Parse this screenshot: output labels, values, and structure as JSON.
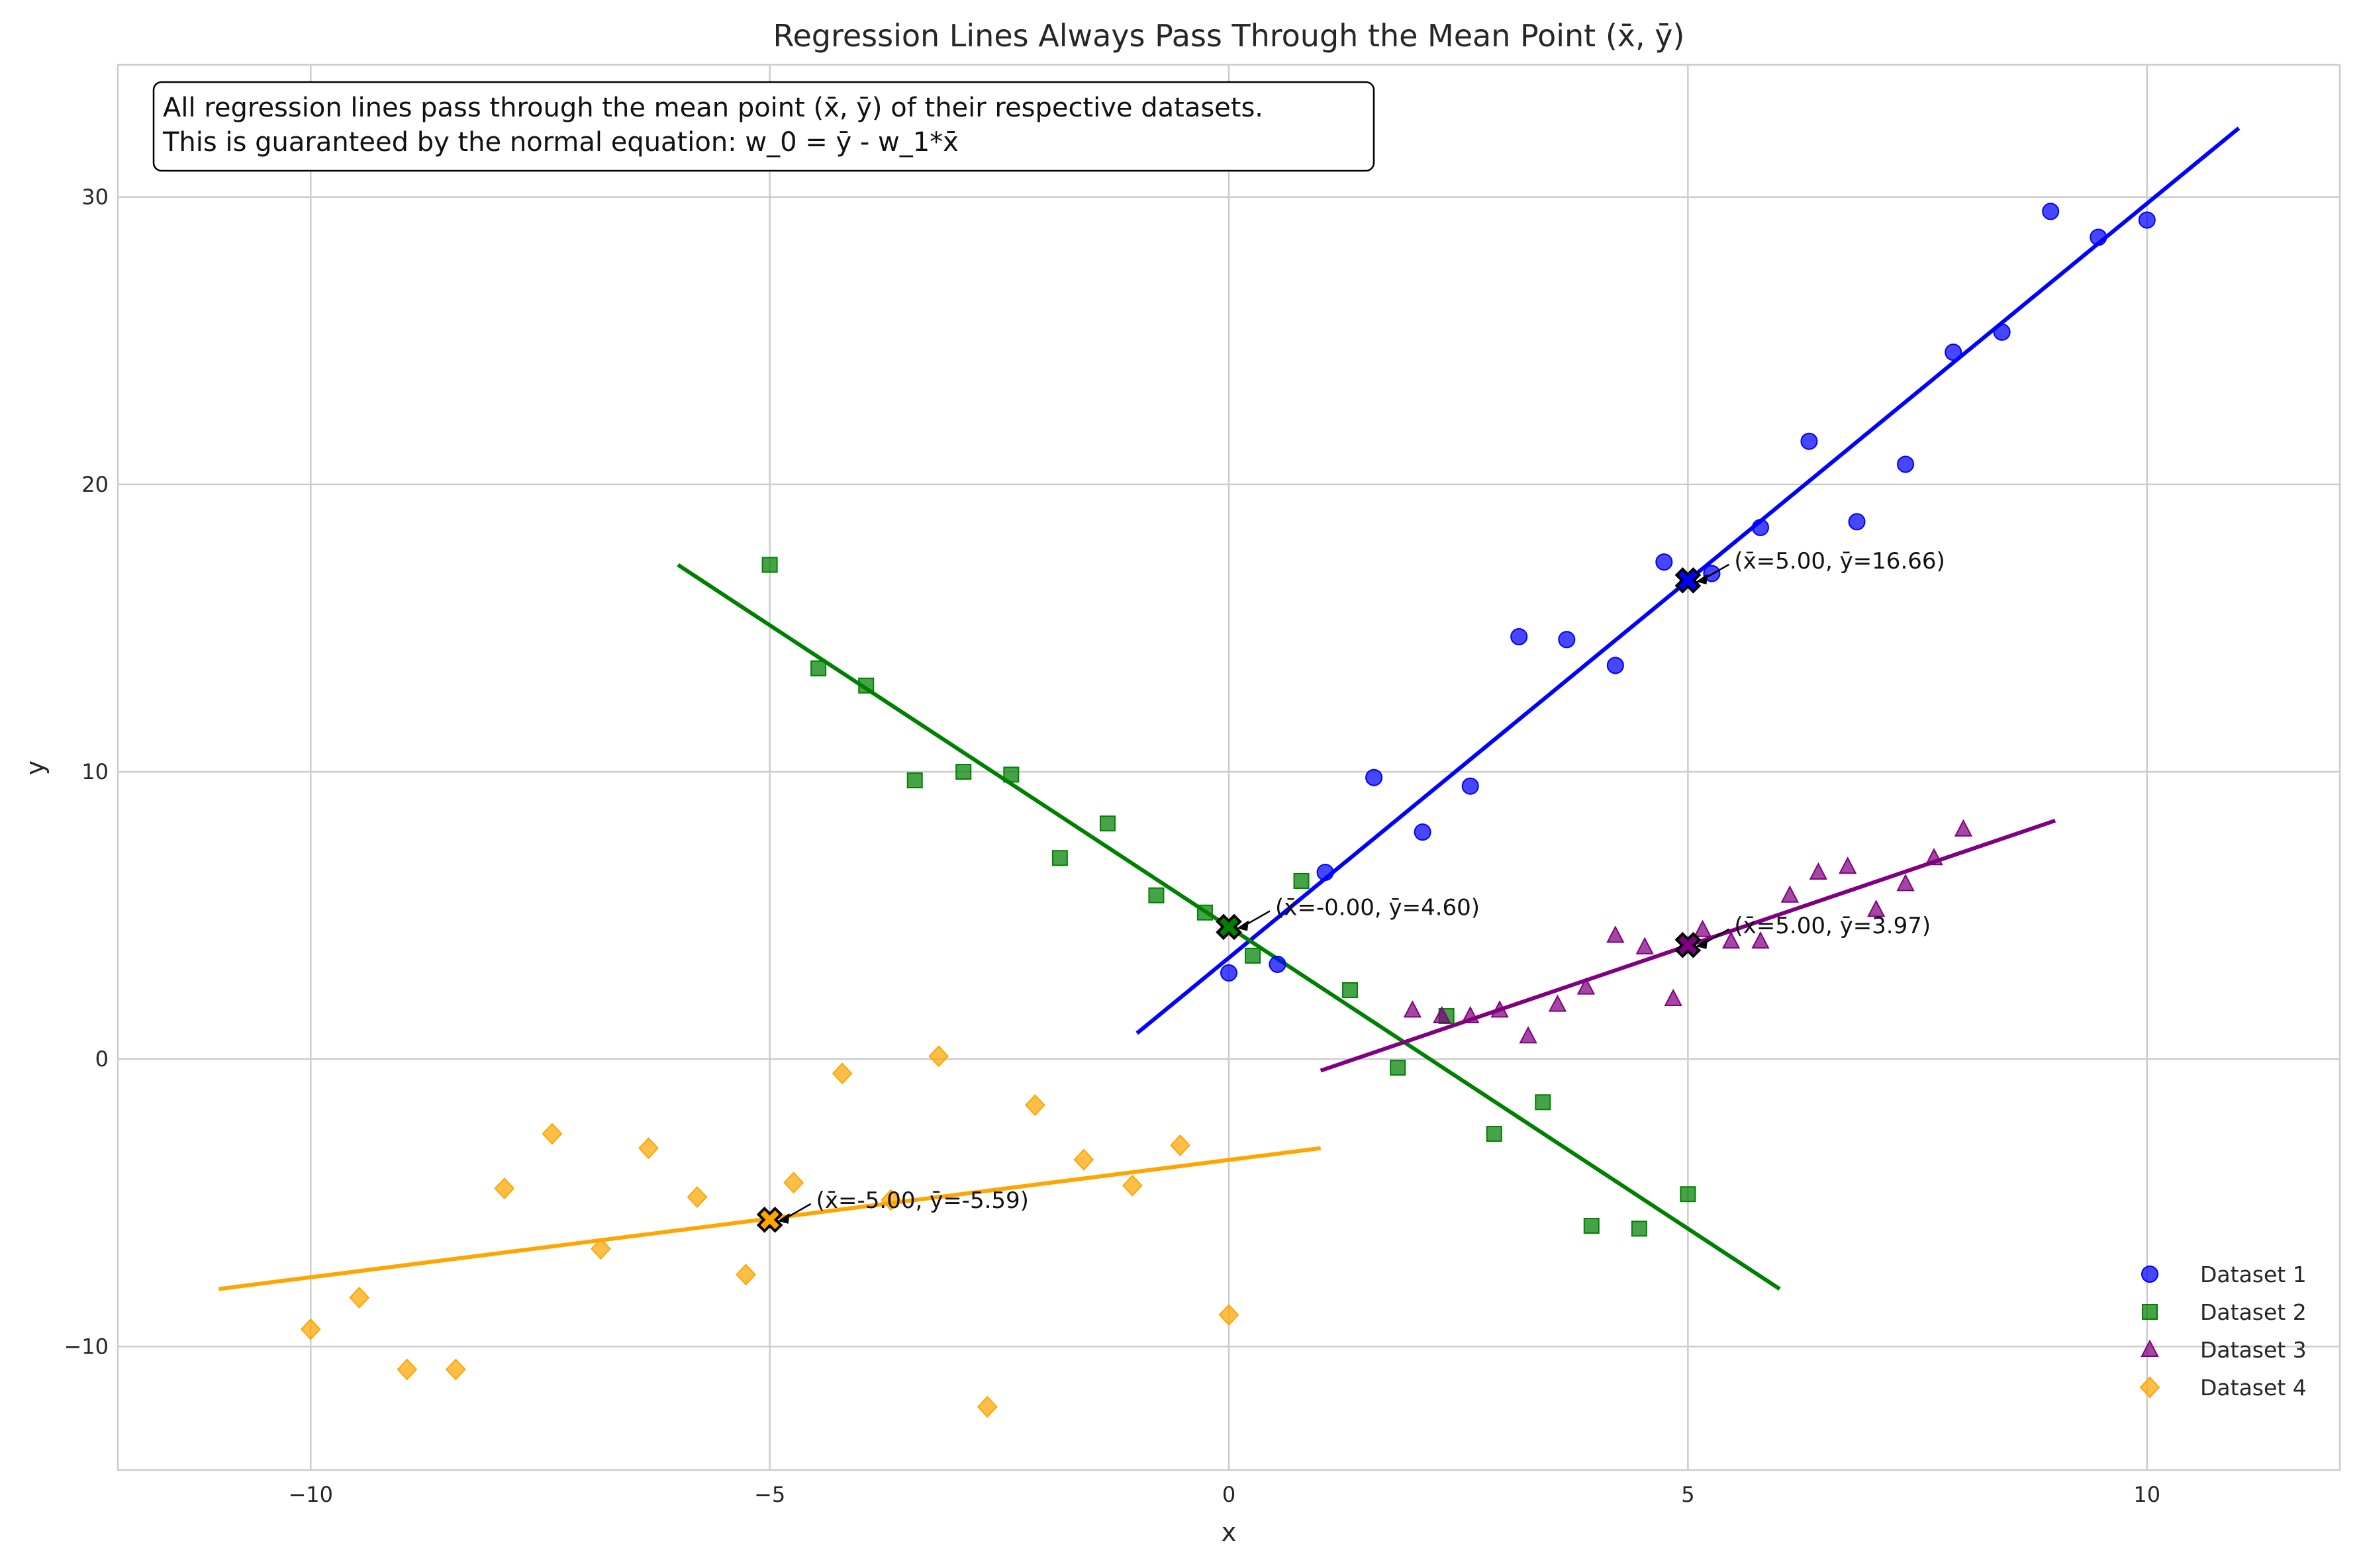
{
  "chart_data": {
    "type": "scatter",
    "title": "Regression Lines Always Pass Through the Mean Point (x̄, ȳ)",
    "xlabel": "x",
    "ylabel": "y",
    "xlim": [
      -12.1,
      12.1
    ],
    "ylim": [
      -14.3,
      34.6
    ],
    "xticks": [
      -10,
      -5,
      0,
      5,
      10
    ],
    "xtick_labels": [
      "−10",
      "−5",
      "0",
      "5",
      "10"
    ],
    "yticks": [
      -10,
      0,
      10,
      20,
      30
    ],
    "ytick_labels": [
      "−10",
      "0",
      "10",
      "20",
      "30"
    ],
    "grid": true,
    "legend_position": "bottom-right",
    "annotation_box": {
      "lines": [
        "All regression lines pass through the mean point (x̄, ȳ) of their respective datasets.",
        "This is guaranteed by the normal equation: w_0 = ȳ - w_1*x̄"
      ]
    },
    "series": [
      {
        "name": "Dataset 1",
        "color": "#0000ff",
        "marker": "circle",
        "points": [
          [
            0.0,
            3.0
          ],
          [
            0.53,
            3.3
          ],
          [
            1.05,
            6.5
          ],
          [
            1.58,
            9.8
          ],
          [
            2.11,
            7.9
          ],
          [
            2.63,
            9.5
          ],
          [
            3.16,
            14.7
          ],
          [
            3.68,
            14.6
          ],
          [
            4.21,
            13.7
          ],
          [
            4.74,
            17.3
          ],
          [
            5.26,
            16.9
          ],
          [
            5.79,
            18.5
          ],
          [
            6.32,
            21.5
          ],
          [
            6.84,
            18.7
          ],
          [
            7.37,
            20.7
          ],
          [
            7.89,
            24.6
          ],
          [
            8.42,
            25.3
          ],
          [
            8.95,
            29.5
          ],
          [
            9.47,
            28.6
          ],
          [
            10.0,
            29.2
          ]
        ],
        "regression_line": {
          "x": [
            -1,
            11
          ],
          "y": [
            0.9,
            32.4
          ]
        },
        "mean": {
          "x": 5.0,
          "y": 16.66
        },
        "mean_label": "(x̄=5.00, ȳ=16.66)"
      },
      {
        "name": "Dataset 2",
        "color": "#008000",
        "marker": "square",
        "points": [
          [
            -5.0,
            17.2
          ],
          [
            -4.47,
            13.6
          ],
          [
            -3.95,
            13.0
          ],
          [
            -3.42,
            9.7
          ],
          [
            -2.89,
            10.0
          ],
          [
            -2.37,
            9.9
          ],
          [
            -1.84,
            7.0
          ],
          [
            -1.32,
            8.2
          ],
          [
            -0.79,
            5.7
          ],
          [
            -0.26,
            5.1
          ],
          [
            0.26,
            3.6
          ],
          [
            0.79,
            6.2
          ],
          [
            1.32,
            2.4
          ],
          [
            1.84,
            -0.3
          ],
          [
            2.37,
            1.5
          ],
          [
            2.89,
            -2.6
          ],
          [
            3.42,
            -1.5
          ],
          [
            3.95,
            -5.8
          ],
          [
            4.47,
            -5.9
          ],
          [
            5.0,
            -4.7
          ]
        ],
        "regression_line": {
          "x": [
            -6,
            6
          ],
          "y": [
            17.2,
            -8.0
          ]
        },
        "mean": {
          "x": 0.0,
          "y": 4.6
        },
        "mean_label": "(x̄=-0.00, ȳ=4.60)"
      },
      {
        "name": "Dataset 3",
        "color": "#800080",
        "marker": "triangle",
        "points": [
          [
            2.0,
            1.7
          ],
          [
            2.32,
            1.5
          ],
          [
            2.63,
            1.5
          ],
          [
            2.95,
            1.7
          ],
          [
            3.26,
            0.8
          ],
          [
            3.58,
            1.9
          ],
          [
            3.89,
            2.5
          ],
          [
            4.21,
            4.3
          ],
          [
            4.53,
            3.9
          ],
          [
            4.84,
            2.1
          ],
          [
            5.16,
            4.5
          ],
          [
            5.47,
            4.1
          ],
          [
            5.79,
            4.1
          ],
          [
            6.11,
            5.7
          ],
          [
            6.42,
            6.5
          ],
          [
            6.74,
            6.7
          ],
          [
            7.05,
            5.2
          ],
          [
            7.37,
            6.1
          ],
          [
            7.68,
            7.0
          ],
          [
            8.0,
            8.0
          ]
        ],
        "regression_line": {
          "x": [
            1,
            9
          ],
          "y": [
            -0.4,
            8.3
          ]
        },
        "mean": {
          "x": 5.0,
          "y": 3.97
        },
        "mean_label": "(x̄=5.00, ȳ=3.97)"
      },
      {
        "name": "Dataset 4",
        "color": "#ffa500",
        "marker": "diamond",
        "points": [
          [
            -10.0,
            -9.4
          ],
          [
            -9.47,
            -8.3
          ],
          [
            -8.95,
            -10.8
          ],
          [
            -8.42,
            -10.8
          ],
          [
            -7.89,
            -4.5
          ],
          [
            -7.37,
            -2.6
          ],
          [
            -6.84,
            -6.6
          ],
          [
            -6.32,
            -3.1
          ],
          [
            -5.79,
            -4.8
          ],
          [
            -5.26,
            -7.5
          ],
          [
            -4.74,
            -4.3
          ],
          [
            -4.21,
            -0.5
          ],
          [
            -3.68,
            -4.9
          ],
          [
            -3.16,
            0.1
          ],
          [
            -2.63,
            -12.1
          ],
          [
            -2.11,
            -1.6
          ],
          [
            -1.58,
            -3.5
          ],
          [
            -1.05,
            -4.4
          ],
          [
            -0.53,
            -3.0
          ],
          [
            0.0,
            -8.9
          ]
        ],
        "regression_line": {
          "x": [
            -11,
            1
          ],
          "y": [
            -8.0,
            -3.1
          ]
        },
        "mean": {
          "x": -5.0,
          "y": -5.59
        },
        "mean_label": "(x̄=-5.00, ȳ=-5.59)"
      }
    ]
  }
}
